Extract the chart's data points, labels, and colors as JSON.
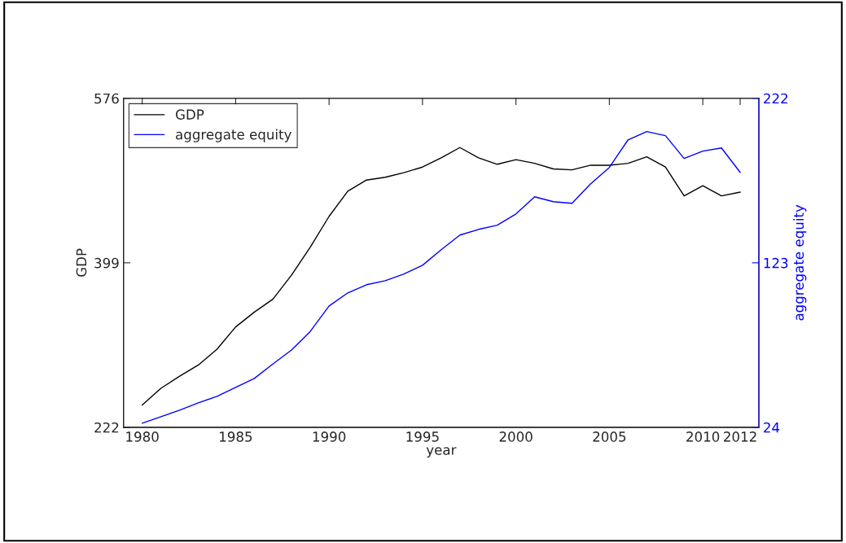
{
  "chart_data": {
    "type": "line",
    "xlabel": "year",
    "ylabel": "GDP",
    "y2label": "aggregate equity",
    "x": [
      1980,
      1981,
      1982,
      1983,
      1984,
      1985,
      1986,
      1987,
      1988,
      1989,
      1990,
      1991,
      1992,
      1993,
      1994,
      1995,
      1996,
      1997,
      1998,
      1999,
      2000,
      2001,
      2002,
      2003,
      2004,
      2005,
      2006,
      2007,
      2008,
      2009,
      2010,
      2011,
      2012
    ],
    "series": [
      {
        "name": "GDP",
        "color": "#000000",
        "values": [
          246,
          264,
          277,
          289,
          306,
          330,
          346,
          360,
          386,
          416,
          449,
          476,
          488,
          491,
          496,
          502,
          512,
          523,
          512,
          505,
          510,
          506,
          500,
          499,
          504,
          504,
          506,
          513,
          502,
          471,
          482,
          471,
          475
        ]
      },
      {
        "name": "aggregate equity",
        "color": "#0000ff",
        "axis": "y2",
        "values": [
          26.5,
          30.4,
          34.3,
          38.7,
          42.6,
          48,
          53.4,
          62.2,
          70.6,
          81.8,
          97,
          104.9,
          109.8,
          112.2,
          116.2,
          121.5,
          130.9,
          139.7,
          143.1,
          145.6,
          152.4,
          162.7,
          159.8,
          158.8,
          170.6,
          180.4,
          197,
          202,
          199.5,
          185.8,
          190.2,
          192.1,
          177.4
        ]
      }
    ],
    "xlim": [
      1979,
      2013
    ],
    "xticks": [
      1980,
      1985,
      1990,
      1995,
      2000,
      2005,
      2010,
      2012
    ],
    "ylim": [
      222,
      576
    ],
    "yticks": [
      222,
      399,
      576
    ],
    "y2lim": [
      24,
      222
    ],
    "y2ticks": [
      24,
      123,
      222
    ],
    "legend": "top left",
    "grid": false
  }
}
